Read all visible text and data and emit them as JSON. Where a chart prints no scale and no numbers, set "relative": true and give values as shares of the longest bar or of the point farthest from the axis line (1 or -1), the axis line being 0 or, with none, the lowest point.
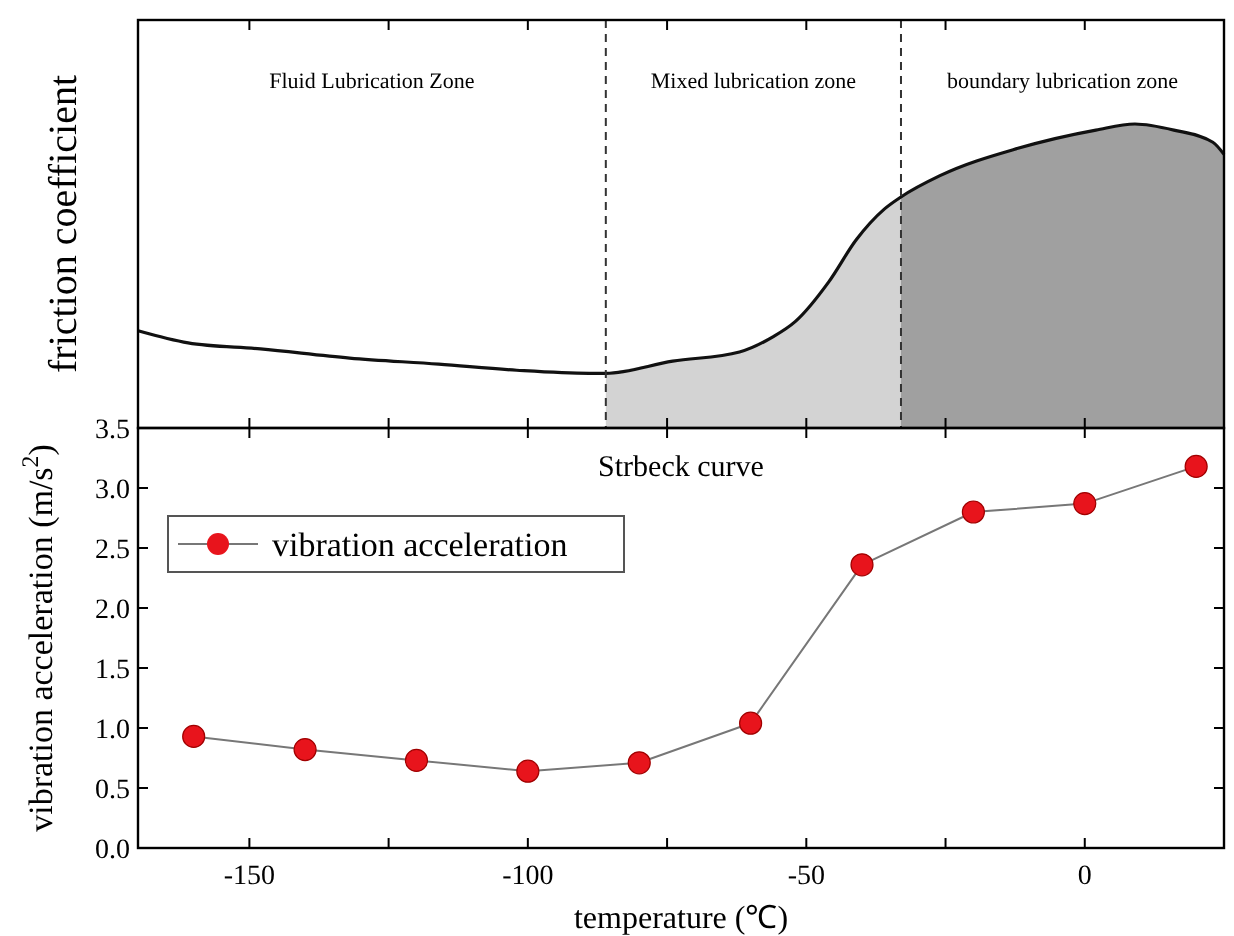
{
  "chart_data": [
    {
      "type": "line",
      "ylabel": "friction coefficient",
      "relative": true,
      "tick_labels": false,
      "xlim": [
        -170,
        25
      ],
      "xticks": [
        -150,
        -125,
        -100,
        -75,
        -50,
        -25,
        0
      ],
      "series": [
        {
          "type": "area",
          "color": "#d3d3d3",
          "x": [
            -86,
            -74,
            -62,
            -56,
            -52,
            -46,
            -41,
            -36,
            -33
          ],
          "values": [
            0.18,
            0.22,
            0.25,
            0.3,
            0.35,
            0.48,
            0.62,
            0.72,
            0.76
          ]
        },
        {
          "type": "area",
          "color": "#a0a0a0",
          "x": [
            -33,
            -26,
            -12,
            2,
            9,
            16,
            23,
            25
          ],
          "values": [
            0.76,
            0.83,
            0.92,
            0.98,
            1,
            0.98,
            0.94,
            0.9
          ]
        },
        {
          "color": "#111111",
          "x": [
            -170,
            -161,
            -148,
            -132,
            -116,
            -102,
            -89,
            -86,
            -74,
            -62,
            -56,
            -52,
            -46,
            -41,
            -36,
            -33,
            -26,
            -12,
            2,
            9,
            16,
            23,
            25
          ],
          "values": [
            0.32,
            0.28,
            0.26,
            0.23,
            0.21,
            0.19,
            0.18,
            0.18,
            0.22,
            0.25,
            0.3,
            0.35,
            0.48,
            0.62,
            0.72,
            0.76,
            0.83,
            0.92,
            0.98,
            1,
            0.98,
            0.94,
            0.9
          ]
        }
      ],
      "ref_lines": [
        {
          "axis": "x",
          "value": -86,
          "line_style": "dashed",
          "color": "#333333"
        },
        {
          "axis": "x",
          "value": -33,
          "line_style": "dashed",
          "color": "#333333"
        }
      ],
      "annotations": [
        "Fluid Lubrication Zone",
        "Mixed lubrication zone",
        "boundary lubrication zone"
      ]
    },
    {
      "type": "line",
      "title": "Strbeck curve",
      "xlabel": "temperature (℃)",
      "ylabel": "vibration acceleration (m/s$^{2}$)",
      "xlim": [
        -170,
        25
      ],
      "xticks": [
        -150,
        {
          "value": -125,
          "label": null
        },
        -100,
        {
          "value": -75,
          "label": null
        },
        -50,
        {
          "value": -25,
          "label": null
        },
        0
      ],
      "ylim": [
        0,
        3.5
      ],
      "yticks": [
        {
          "value": 0,
          "label": "0.0"
        },
        0.5,
        {
          "value": 1,
          "label": "1.0"
        },
        1.5,
        {
          "value": 2,
          "label": "2.0"
        },
        2.5,
        {
          "value": 3,
          "label": "3.0"
        },
        3.5
      ],
      "x": [
        -160,
        -140,
        -120,
        -100,
        -80,
        -60,
        -40,
        -20,
        0,
        20
      ],
      "series": [
        {
          "name": "vibration acceleration",
          "color": "#e8141c",
          "values": [
            0.93,
            0.82,
            0.73,
            0.64,
            0.71,
            1.04,
            2.36,
            2.8,
            2.87,
            3.18
          ]
        }
      ],
      "marker": "circle",
      "line_style": "solid",
      "legend": "top left"
    }
  ]
}
